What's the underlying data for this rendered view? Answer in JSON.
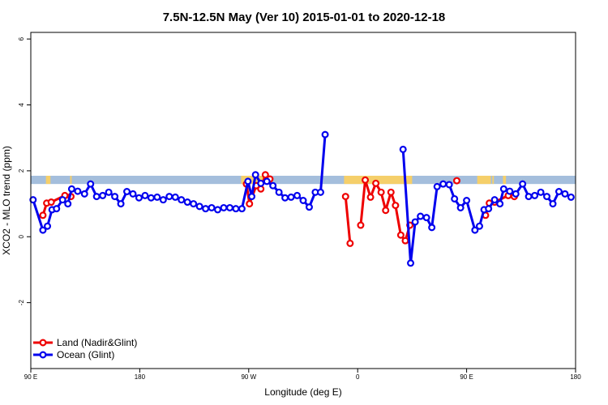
{
  "chart_data": {
    "type": "line",
    "title": "7.5N-12.5N May (Ver 10)   2015-01-01 to 2020-12-18",
    "xlabel": "Longitude (deg E)",
    "ylabel": "XCO2 - MLO trend (ppm)",
    "xlim": [
      90,
      450
    ],
    "ylim": [
      -4,
      6.2
    ],
    "x_ticks": [
      {
        "value": 90,
        "label": "90 E"
      },
      {
        "value": 162,
        "label": "180"
      },
      {
        "value": 234,
        "label": "90 W"
      },
      {
        "value": 306,
        "label": "0"
      },
      {
        "value": 378,
        "label": "90 E"
      },
      {
        "value": 450,
        "label": "180"
      }
    ],
    "y_ticks": [
      {
        "value": -2,
        "label": "-2"
      },
      {
        "value": 0,
        "label": "0"
      },
      {
        "value": 2,
        "label": "2"
      },
      {
        "value": 4,
        "label": "4"
      },
      {
        "value": 6,
        "label": "6"
      }
    ],
    "grid": false,
    "legend_position": "bottom-left",
    "colors": {
      "land": "#ee0000",
      "ocean": "#0000ee",
      "band": "#a4bedc",
      "land_mask": "#f5cf6a"
    },
    "background_band": {
      "y_min": 1.6,
      "y_max": 1.85
    },
    "land_mask_segments": [
      [
        100.0,
        103.0
      ],
      [
        116.0,
        117.0
      ],
      [
        229.0,
        249.0
      ],
      [
        297.0,
        342.0
      ],
      [
        385.0,
        394.0
      ],
      [
        395.0,
        396.0
      ],
      [
        402.0,
        404.0
      ]
    ],
    "series": [
      {
        "name": "Land (Nadir&Glint)",
        "color": "#ee0000",
        "segments": [
          [
            [
              98.0,
              0.65
            ],
            [
              100.5,
              1.02
            ],
            [
              103.5,
              1.05
            ],
            [
              112.5,
              1.25
            ],
            [
              116.5,
              1.22
            ]
          ],
          [
            [
              232.5,
              1.6
            ],
            [
              234.5,
              1.0
            ],
            [
              239.0,
              1.55
            ],
            [
              242.0,
              1.45
            ],
            [
              245.0,
              1.88
            ],
            [
              248.0,
              1.75
            ]
          ],
          [
            [
              298.0,
              1.22
            ],
            [
              301.0,
              -0.2
            ]
          ],
          [
            [
              308.0,
              0.35
            ],
            [
              311.0,
              1.72
            ],
            [
              314.5,
              1.2
            ],
            [
              318.0,
              1.62
            ],
            [
              321.5,
              1.35
            ],
            [
              324.5,
              0.8
            ],
            [
              328.0,
              1.35
            ],
            [
              331.0,
              0.95
            ],
            [
              334.5,
              0.05
            ],
            [
              337.5,
              -0.12
            ],
            [
              340.5,
              0.35
            ]
          ],
          [
            [
              371.5,
              1.7
            ]
          ],
          [
            [
              390.5,
              0.65
            ],
            [
              393.0,
              1.02
            ],
            [
              396.5,
              1.05
            ],
            [
              405.5,
              1.25
            ],
            [
              409.5,
              1.22
            ]
          ]
        ]
      },
      {
        "name": "Ocean (Glint)",
        "color": "#0000ee",
        "segments": [
          [
            [
              91.5,
              1.12
            ],
            [
              98.0,
              0.2
            ],
            [
              101.0,
              0.32
            ],
            [
              104.0,
              0.82
            ],
            [
              107.0,
              0.85
            ],
            [
              111.0,
              1.12
            ],
            [
              114.5,
              1.0
            ],
            [
              117.0,
              1.45
            ],
            [
              121.0,
              1.38
            ],
            [
              125.5,
              1.3
            ],
            [
              129.5,
              1.6
            ],
            [
              133.5,
              1.22
            ],
            [
              137.5,
              1.25
            ],
            [
              141.5,
              1.35
            ],
            [
              145.5,
              1.22
            ],
            [
              149.5,
              1.0
            ],
            [
              153.5,
              1.37
            ],
            [
              157.5,
              1.3
            ],
            [
              161.5,
              1.18
            ],
            [
              165.5,
              1.25
            ],
            [
              169.5,
              1.18
            ],
            [
              173.5,
              1.2
            ],
            [
              177.5,
              1.12
            ],
            [
              181.5,
              1.22
            ],
            [
              185.5,
              1.2
            ],
            [
              189.5,
              1.12
            ],
            [
              193.5,
              1.05
            ],
            [
              197.5,
              1.0
            ],
            [
              201.5,
              0.92
            ],
            [
              205.5,
              0.85
            ],
            [
              209.5,
              0.88
            ],
            [
              213.5,
              0.82
            ],
            [
              217.5,
              0.88
            ],
            [
              221.5,
              0.88
            ],
            [
              225.5,
              0.85
            ],
            [
              229.5,
              0.85
            ],
            [
              233.5,
              1.68
            ],
            [
              236.0,
              1.22
            ],
            [
              238.5,
              1.88
            ],
            [
              242.0,
              1.62
            ],
            [
              246.0,
              1.68
            ],
            [
              250.0,
              1.55
            ],
            [
              254.0,
              1.35
            ],
            [
              258.0,
              1.18
            ],
            [
              262.0,
              1.2
            ],
            [
              266.0,
              1.25
            ],
            [
              270.0,
              1.1
            ],
            [
              274.0,
              0.9
            ],
            [
              278.0,
              1.35
            ],
            [
              281.5,
              1.35
            ],
            [
              284.5,
              3.1
            ]
          ],
          [
            [
              336.0,
              2.65
            ],
            [
              341.0,
              -0.8
            ],
            [
              344.0,
              0.45
            ],
            [
              347.5,
              0.62
            ],
            [
              351.5,
              0.58
            ],
            [
              355.0,
              0.28
            ],
            [
              358.5,
              1.52
            ],
            [
              362.5,
              1.6
            ],
            [
              366.5,
              1.58
            ],
            [
              370.0,
              1.15
            ],
            [
              374.0,
              0.88
            ],
            [
              378.0,
              1.1
            ],
            [
              383.5,
              0.2
            ],
            [
              386.5,
              0.32
            ],
            [
              389.5,
              0.82
            ],
            [
              392.5,
              0.85
            ],
            [
              396.5,
              1.12
            ],
            [
              400.0,
              1.0
            ],
            [
              402.5,
              1.45
            ],
            [
              406.5,
              1.38
            ],
            [
              410.5,
              1.3
            ],
            [
              415.0,
              1.6
            ],
            [
              419.0,
              1.22
            ],
            [
              423.0,
              1.25
            ],
            [
              427.0,
              1.35
            ],
            [
              431.0,
              1.22
            ],
            [
              435.0,
              1.0
            ],
            [
              439.0,
              1.37
            ],
            [
              443.0,
              1.3
            ],
            [
              447.0,
              1.2
            ]
          ]
        ]
      }
    ]
  }
}
